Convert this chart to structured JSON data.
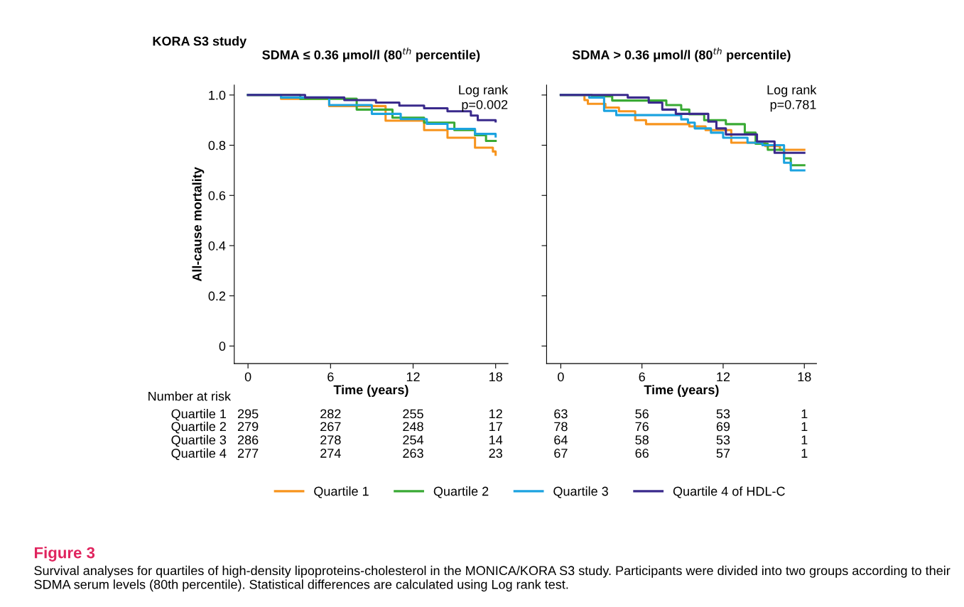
{
  "chart_data": [
    {
      "type": "step",
      "title": "SDMA ≤ 0.36 μmol/l (80$^{th}$ percentile)",
      "xlabel": "Time (years)",
      "ylabel": "All-cause mortality",
      "xlim": [
        -1,
        18.9
      ],
      "xticks": [
        0,
        6,
        12,
        18
      ],
      "ylim": [
        -0.07,
        1.04
      ],
      "yticks": [
        0,
        {
          "value": 0.2,
          "label": "0.2"
        },
        {
          "value": 0.4,
          "label": "0.4"
        },
        {
          "value": 0.6,
          "label": "0.6"
        },
        {
          "value": 0.8,
          "label": "0.8"
        },
        {
          "value": 1,
          "label": "1.0"
        }
      ],
      "legend": "bottom",
      "grid": false,
      "series": [
        {
          "name": "Quartile 1",
          "color": "#f7941d",
          "x": [
            0,
            2.4,
            5.9,
            10,
            12.8,
            14.5,
            16.5,
            17.8,
            18
          ],
          "values": [
            1.0,
            0.985,
            0.956,
            0.898,
            0.86,
            0.83,
            0.79,
            0.775,
            0.762
          ]
        },
        {
          "name": "Quartile 2",
          "color": "#3aaa35",
          "x": [
            0,
            3.8,
            7.9,
            10.5,
            12.8,
            15,
            16.5,
            17.3,
            18
          ],
          "values": [
            1.0,
            0.985,
            0.942,
            0.91,
            0.89,
            0.86,
            0.84,
            0.817,
            0.817
          ]
        },
        {
          "name": "Quartile 3",
          "color": "#1ca3e0",
          "x": [
            0,
            2.4,
            5.9,
            9,
            11.1,
            13,
            14.5,
            16.5,
            18
          ],
          "values": [
            1.0,
            0.99,
            0.96,
            0.925,
            0.904,
            0.885,
            0.865,
            0.845,
            0.835
          ]
        },
        {
          "name": "Quartile 4 of HDL-C",
          "color": "#3a2a8c",
          "x": [
            0,
            4.15,
            7,
            9.3,
            11,
            12.8,
            14.5,
            16.2,
            16.7,
            18
          ],
          "values": [
            1.0,
            0.99,
            0.98,
            0.97,
            0.958,
            0.947,
            0.935,
            0.918,
            0.9,
            0.895
          ]
        }
      ],
      "annotations": [
        "Log rank\np=0.002",
        "KORA S3 study",
        "Figure 3",
        "Survival analyses for quartiles of high-density lipoproteins-cholesterol in the MONICA/KORA S3 study. Participants were divided into two groups according to their SDMA serum levels (80th percentile). Statistical differences are calculated using Log rank test.",
        "Number at risk",
        "Quartile 1",
        "295",
        "282",
        "255",
        "12",
        "Quartile 2",
        "279",
        "267",
        "248",
        "17",
        "Quartile 3",
        "286",
        "278",
        "254",
        "14",
        "Quartile 4",
        "277",
        "274",
        "263",
        "23"
      ]
    },
    {
      "type": "step",
      "title": "SDMA > 0.36 μmol/l (80$^{th}$ percentile)",
      "xlabel": "Time (years)",
      "xlim": [
        -1.05,
        18.9
      ],
      "xticks": [
        0,
        6,
        12,
        18
      ],
      "ylim": [
        -0.07,
        1.04
      ],
      "yticks": [
        0,
        0.2,
        0.4,
        0.6,
        0.8,
        1
      ],
      "tick_labels": "x",
      "grid": false,
      "series": [
        {
          "color": "#f7941d",
          "x": [
            0,
            1.75,
            2.0,
            3.3,
            4.3,
            5.5,
            6.3,
            9.5,
            10.7,
            12.6,
            15.1,
            16.2,
            18
          ],
          "values": [
            1.0,
            0.98,
            0.965,
            0.95,
            0.935,
            0.9,
            0.884,
            0.875,
            0.86,
            0.81,
            0.797,
            0.782,
            0.782
          ]
        },
        {
          "color": "#3aaa35",
          "x": [
            0,
            2.3,
            3.8,
            7.8,
            8.9,
            9.5,
            10.6,
            12.2,
            13.6,
            14.4,
            15.3,
            16.5,
            17,
            18
          ],
          "values": [
            1.0,
            0.995,
            0.978,
            0.96,
            0.942,
            0.923,
            0.9,
            0.884,
            0.85,
            0.806,
            0.782,
            0.748,
            0.72,
            0.72
          ]
        },
        {
          "color": "#1ca3e0",
          "x": [
            0,
            2.1,
            3.2,
            4.1,
            8.9,
            9.4,
            9.9,
            11.1,
            12,
            13.8,
            14.9,
            16.5,
            17,
            18
          ],
          "values": [
            1.0,
            0.99,
            0.937,
            0.92,
            0.903,
            0.89,
            0.867,
            0.85,
            0.83,
            0.81,
            0.8,
            0.73,
            0.7,
            0.7
          ]
        },
        {
          "color": "#3a2a8c",
          "x": [
            0,
            4.95,
            6.5,
            7.5,
            8.5,
            10.9,
            11.5,
            12.2,
            14.5,
            15.8,
            18
          ],
          "values": [
            1.0,
            0.99,
            0.97,
            0.942,
            0.925,
            0.894,
            0.867,
            0.843,
            0.815,
            0.77,
            0.77
          ]
        }
      ],
      "annotations": [
        "Log rank\np=0.781",
        "63",
        "56",
        "53",
        "1",
        "78",
        "76",
        "69",
        "1",
        "64",
        "58",
        "53",
        "1",
        "67",
        "66",
        "57",
        "1"
      ]
    }
  ]
}
